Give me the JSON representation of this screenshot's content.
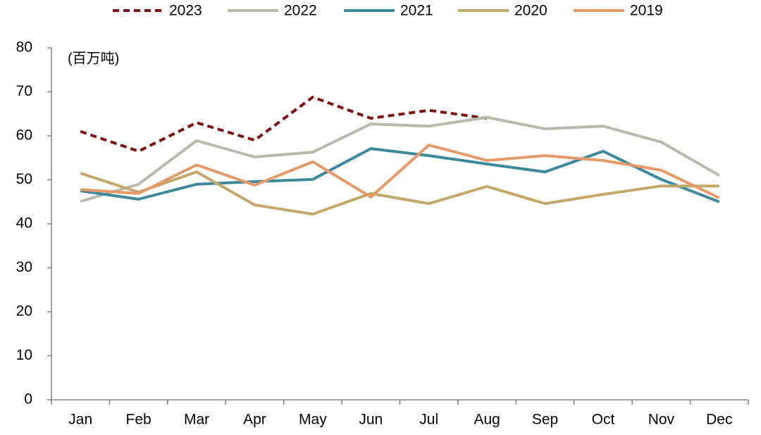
{
  "chart_data": {
    "type": "line",
    "unit_label": "(百万吨)",
    "categories": [
      "Jan",
      "Feb",
      "Mar",
      "Apr",
      "May",
      "Jun",
      "Jul",
      "Aug",
      "Sep",
      "Oct",
      "Nov",
      "Dec"
    ],
    "series": [
      {
        "name": "2023",
        "color": "#7b1113",
        "dashed": true,
        "values": [
          61,
          56.5,
          63,
          59,
          68.8,
          64,
          65.8,
          64,
          null,
          null,
          null,
          null
        ]
      },
      {
        "name": "2022",
        "color": "#b9b9ad",
        "values": [
          45.1,
          49,
          58.9,
          55.2,
          56.3,
          62.7,
          62.2,
          64.2,
          61.6,
          62.2,
          58.6,
          51
        ]
      },
      {
        "name": "2021",
        "color": "#3e8a9a",
        "values": [
          47.5,
          45.6,
          49,
          49.6,
          50.1,
          57.1,
          55.5,
          53.6,
          51.8,
          56.5,
          50.1,
          45
        ]
      },
      {
        "name": "2020",
        "color": "#c3a86b",
        "values": [
          51.5,
          47.2,
          51.8,
          44.3,
          42.2,
          46.9,
          44.6,
          48.5,
          44.6,
          46.7,
          48.6,
          48.6
        ]
      },
      {
        "name": "2019",
        "color": "#e59a69",
        "values": [
          47.8,
          46.9,
          53.4,
          48.8,
          54.1,
          46.1,
          57.9,
          54.4,
          55.5,
          54.4,
          52.2,
          45.9
        ]
      }
    ],
    "ylim": [
      0,
      80
    ],
    "yticks": [
      0,
      10,
      20,
      30,
      40,
      50,
      60,
      70,
      80
    ],
    "grid": false,
    "legend": "top"
  }
}
